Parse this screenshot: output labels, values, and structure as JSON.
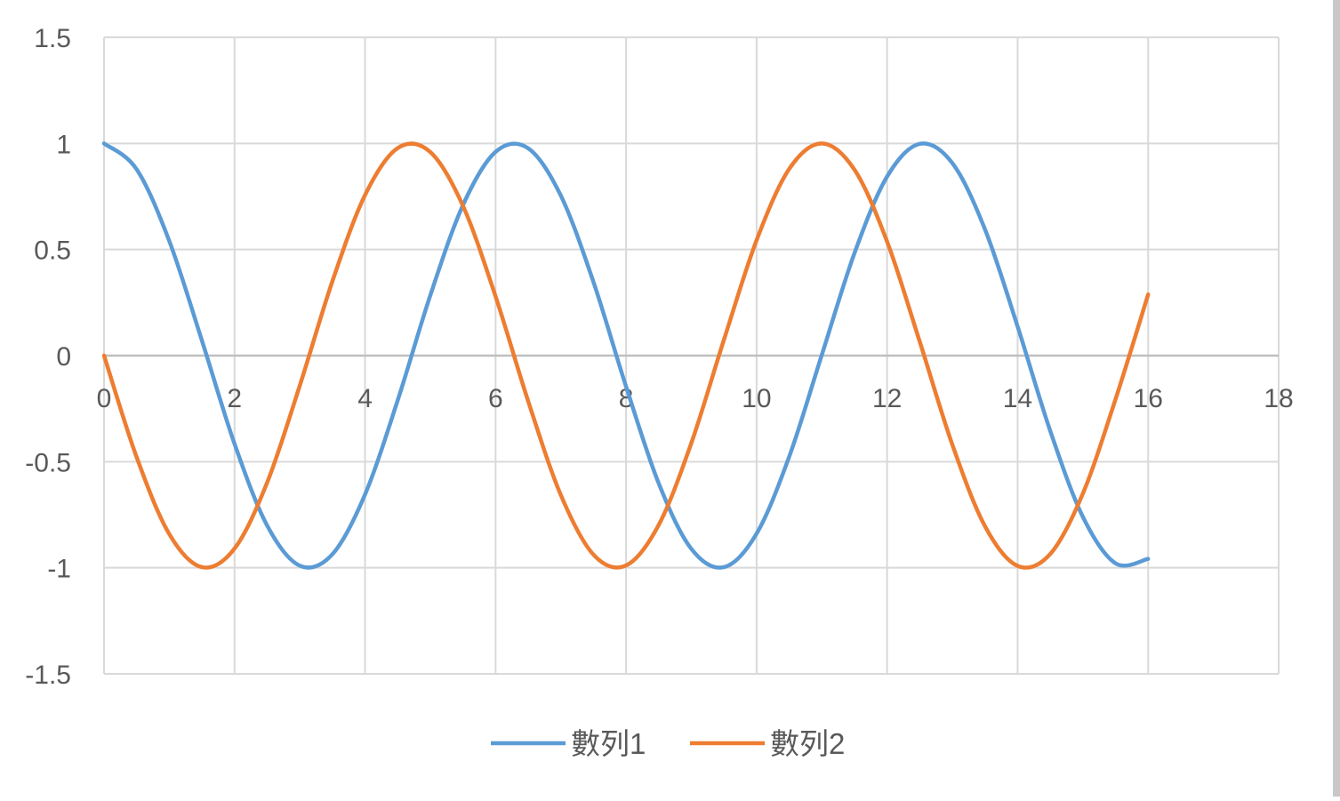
{
  "chart_data": {
    "type": "scatter",
    "title": "",
    "xlabel": "",
    "ylabel": "",
    "xlim": [
      0,
      18
    ],
    "ylim": [
      -1.5,
      1.5
    ],
    "x_ticks": [
      "0",
      "2",
      "4",
      "6",
      "8",
      "10",
      "12",
      "14",
      "16",
      "18"
    ],
    "y_ticks": [
      "1.5",
      "1",
      "0.5",
      "0",
      "-0.5",
      "-1",
      "-1.5"
    ],
    "grid": true,
    "legend_position": "bottom",
    "series": [
      {
        "name": "數列1",
        "color": "#5b9bd5",
        "x": [
          0,
          0.5,
          1,
          1.5,
          2,
          2.5,
          3,
          3.5,
          4,
          4.5,
          5,
          5.5,
          6,
          6.5,
          7,
          7.5,
          8,
          8.5,
          9,
          9.5,
          10,
          10.5,
          11,
          11.5,
          12,
          12.5,
          13,
          13.5,
          14,
          14.5,
          15,
          15.5,
          16
        ],
        "y": [
          1,
          0.878,
          0.54,
          0.071,
          -0.416,
          -0.801,
          -0.99,
          -0.936,
          -0.654,
          -0.211,
          0.284,
          0.709,
          0.96,
          0.977,
          0.754,
          0.347,
          -0.146,
          -0.602,
          -0.911,
          -0.997,
          -0.839,
          -0.476,
          0.004,
          0.483,
          0.844,
          0.998,
          0.907,
          0.595,
          0.137,
          -0.355,
          -0.76,
          -0.979,
          -0.958
        ]
      },
      {
        "name": "數列2",
        "color": "#ed7d31",
        "x": [
          0,
          0.5,
          1,
          1.5,
          2,
          2.5,
          3,
          3.5,
          4,
          4.5,
          5,
          5.5,
          6,
          6.5,
          7,
          7.5,
          8,
          8.5,
          9,
          9.5,
          10,
          10.5,
          11,
          11.5,
          12,
          12.5,
          13,
          13.5,
          14,
          14.5,
          15,
          15.5,
          16
        ],
        "y": [
          0,
          -0.479,
          -0.841,
          -0.997,
          -0.909,
          -0.598,
          -0.141,
          0.351,
          0.757,
          0.978,
          0.959,
          0.706,
          0.279,
          -0.215,
          -0.657,
          -0.938,
          -0.989,
          -0.798,
          -0.412,
          0.075,
          0.544,
          0.88,
          1,
          0.876,
          0.537,
          0.066,
          -0.42,
          -0.804,
          -0.991,
          -0.935,
          -0.65,
          -0.206,
          0.288
        ]
      }
    ]
  }
}
